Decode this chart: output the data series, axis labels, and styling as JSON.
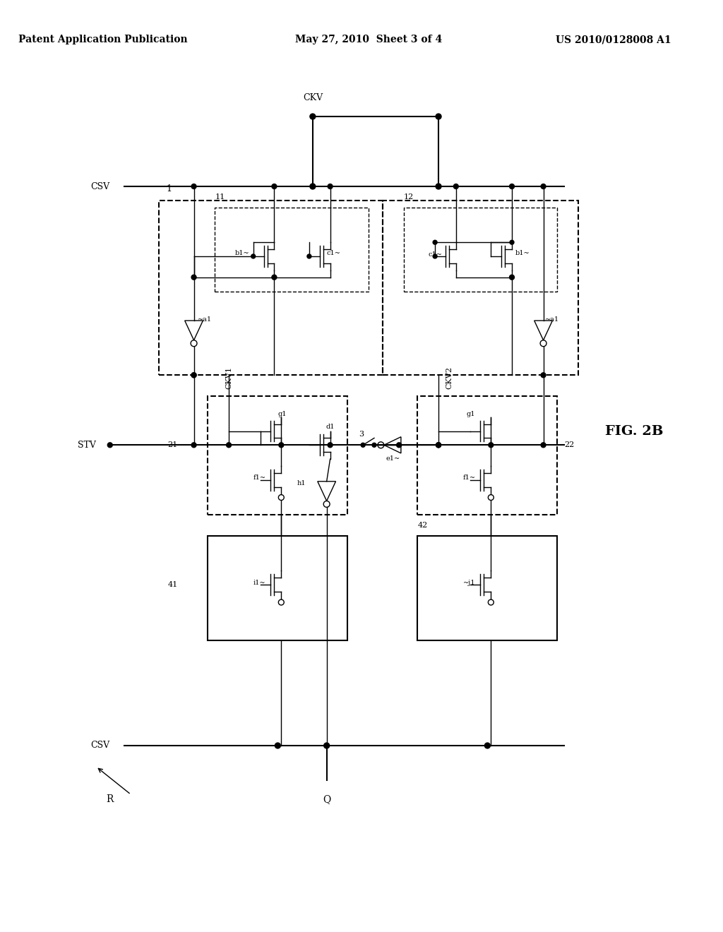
{
  "fig_width": 10.24,
  "fig_height": 13.2,
  "dpi": 100,
  "bg_color": "#ffffff",
  "line_color": "#000000",
  "header_left": "Patent Application Publication",
  "header_mid": "May 27, 2010  Sheet 3 of 4",
  "header_right": "US 2010/0128008 A1",
  "fig_label": "FIG. 2B",
  "title_fontsize": 11,
  "label_fontsize": 10
}
